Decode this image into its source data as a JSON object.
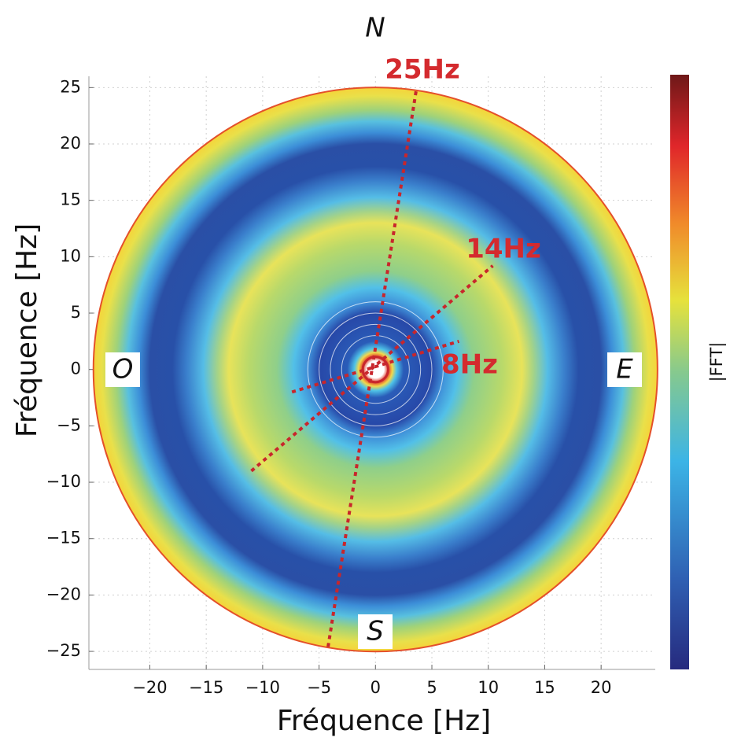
{
  "chart_data": {
    "type": "polar-heatmap",
    "xlabel": "Fréquence [Hz]",
    "ylabel": "Fréquence [Hz]",
    "colorbar_label": "|FFT|",
    "xlim": [
      -25.4,
      24.8
    ],
    "ylim": [
      -26.6,
      26
    ],
    "xticks": [
      {
        "value": -20,
        "label": "−20"
      },
      {
        "value": -15,
        "label": "−15"
      },
      {
        "value": -10,
        "label": "−10"
      },
      {
        "value": -5,
        "label": "−5"
      },
      0,
      5,
      10,
      15,
      20
    ],
    "yticks": [
      {
        "value": -25,
        "label": "−25"
      },
      {
        "value": -20,
        "label": "−20"
      },
      {
        "value": -15,
        "label": "−15"
      },
      {
        "value": -10,
        "label": "−10"
      },
      {
        "value": -5,
        "label": "−5"
      },
      0,
      5,
      10,
      15,
      20,
      25
    ],
    "grid": true,
    "radius": 25,
    "directions": {
      "north": "N",
      "south": "S",
      "west": "O",
      "east": "E"
    },
    "guides": [
      {
        "label": "25Hz",
        "from": [
          -4.2,
          -24.6
        ],
        "to": [
          3.6,
          24.7
        ]
      },
      {
        "label": "14Hz",
        "from": [
          -11,
          -9
        ],
        "to": [
          10.4,
          9.2
        ]
      },
      {
        "label": "8Hz",
        "from": [
          -7.4,
          -2
        ],
        "to": [
          7.4,
          2.5
        ]
      }
    ],
    "guide_color": "#c8262c"
  }
}
